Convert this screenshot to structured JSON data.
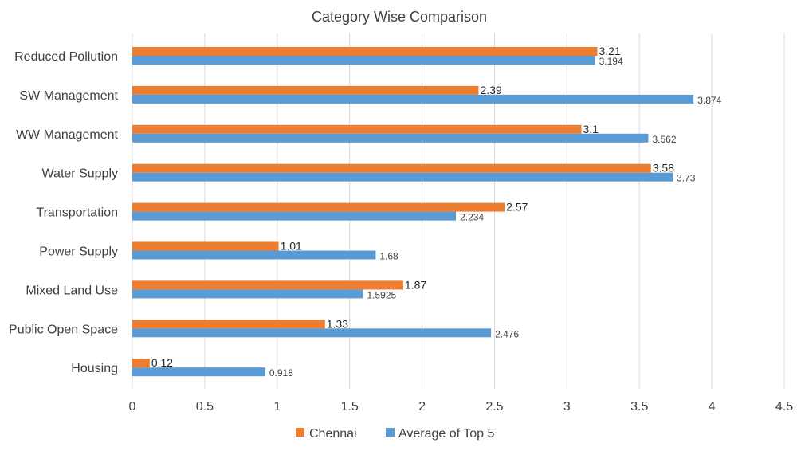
{
  "colors": {
    "chennai": "#ED7D31",
    "top5": "#5B9BD5",
    "grid": "#D9D9D9"
  },
  "chart_data": {
    "type": "bar",
    "orientation": "horizontal",
    "title": "Category Wise Comparison",
    "categories": [
      "Reduced Pollution",
      "SW Management",
      "WW Management",
      "Water Supply",
      "Transportation",
      "Power Supply",
      "Mixed Land Use",
      "Public Open Space",
      "Housing"
    ],
    "series": [
      {
        "name": "Chennai",
        "color": "#ED7D31",
        "values": [
          3.21,
          2.39,
          3.1,
          3.58,
          2.57,
          1.01,
          1.87,
          1.33,
          0.12
        ],
        "labels": [
          "3.21",
          "2.39",
          "3.1",
          "3.58",
          "2.57",
          "1.01",
          "1.87",
          "1.33",
          "0.12"
        ]
      },
      {
        "name": "Average of Top 5",
        "color": "#5B9BD5",
        "values": [
          3.194,
          3.874,
          3.562,
          3.73,
          2.234,
          1.68,
          1.5925,
          2.476,
          0.918
        ],
        "labels": [
          "3.194",
          "3.874",
          "3.562",
          "3.73",
          "2.234",
          "1.68",
          "1.5925",
          "2.476",
          "0.918"
        ]
      }
    ],
    "xlim": [
      0,
      4.5
    ],
    "xticks": [
      "0",
      "0.5",
      "1",
      "1.5",
      "2",
      "2.5",
      "3",
      "3.5",
      "4",
      "4.5"
    ],
    "grid": true,
    "legend": "bottom"
  }
}
